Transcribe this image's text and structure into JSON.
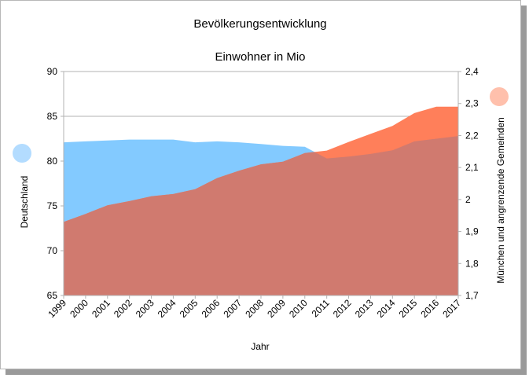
{
  "chart_data": {
    "type": "area",
    "title": "Bevölkerungsentwicklung",
    "subtitle": "Einwohner in Mio",
    "xlabel": "Jahr",
    "ylabel_left": "Deutschland",
    "ylabel_right": "München und angrenzende Gemeinden",
    "categories": [
      "1999",
      "2000",
      "2001",
      "2002",
      "2003",
      "2004",
      "2005",
      "2006",
      "2007",
      "2008",
      "2009",
      "2010",
      "2011",
      "2012",
      "2013",
      "2014",
      "2015",
      "2016",
      "2017"
    ],
    "ylim_left": [
      65,
      90
    ],
    "ylim_right": [
      1.7,
      2.4
    ],
    "yticks_left": [
      "65",
      "70",
      "75",
      "80",
      "85",
      "90"
    ],
    "yticks_right": [
      "1,7",
      "1,8",
      "1,9",
      "2",
      "2,1",
      "2,2",
      "2,3",
      "2,4"
    ],
    "series": [
      {
        "name": "Deutschland",
        "axis": "left",
        "color": "#83caff",
        "values": [
          82.1,
          82.2,
          82.3,
          82.4,
          82.4,
          82.4,
          82.1,
          82.2,
          82.1,
          81.9,
          81.7,
          81.6,
          80.3,
          80.5,
          80.8,
          81.2,
          82.2,
          82.5,
          82.8
        ]
      },
      {
        "name": "München und angrenzende Gemeinden",
        "axis": "right",
        "color": "#ff7f5a",
        "values": [
          1.93,
          1.955,
          1.982,
          1.995,
          2.01,
          2.017,
          2.032,
          2.067,
          2.09,
          2.11,
          2.118,
          2.145,
          2.153,
          2.18,
          2.205,
          2.23,
          2.27,
          2.29,
          2.29
        ]
      }
    ],
    "overlap_color": "#d07a6f",
    "legend_marker_left_color": "#b3dcff",
    "legend_marker_right_color": "#ffc0ac",
    "grid": true
  }
}
